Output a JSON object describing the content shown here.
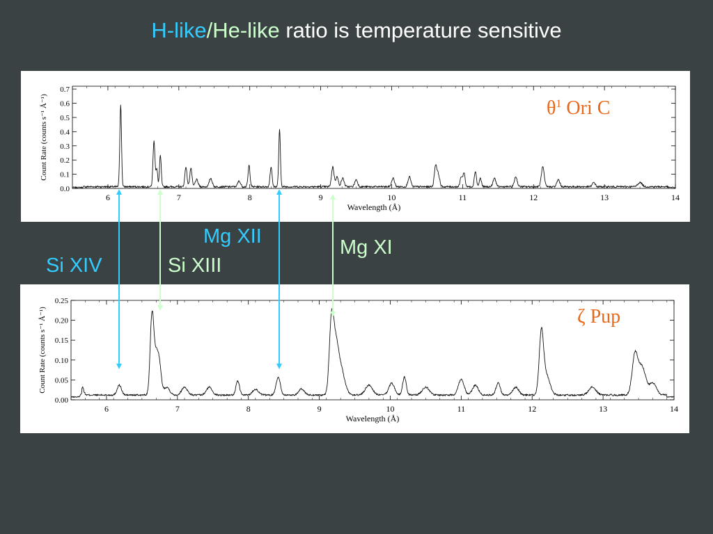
{
  "title": {
    "part1": "H-like",
    "part2": "/",
    "part3": "He-like",
    "part4": " ratio is temperature sensitive"
  },
  "colors": {
    "h_like": "#33ccff",
    "he_like": "#ccffcc",
    "star_label": "#e8681a",
    "background": "#3b4244"
  },
  "ion_labels": {
    "si_xiv": "Si XIV",
    "si_xiii": "Si XIII",
    "mg_xii": "Mg XII",
    "mg_xi": "Mg XI"
  },
  "chart_data": [
    {
      "type": "line",
      "star_label_symbol": "θ",
      "star_label_sup": "1",
      "star_label_text": " Ori C",
      "xlabel": "Wavelength (Å)",
      "ylabel": "Count Rate (counts s⁻¹ Å⁻¹)",
      "xlim": [
        5.5,
        14
      ],
      "ylim": [
        0,
        0.72
      ],
      "xticks": [
        6,
        7,
        8,
        9,
        10,
        11,
        12,
        13,
        14
      ],
      "yticks": [
        0.0,
        0.1,
        0.2,
        0.3,
        0.4,
        0.5,
        0.6,
        0.7
      ],
      "ytick_labels": [
        "0.0",
        "0.1",
        "0.2",
        "0.3",
        "0.4",
        "0.5",
        "0.6",
        "0.7"
      ],
      "baseline": 0.012,
      "peaks": [
        {
          "x": 6.18,
          "y": 0.58,
          "w": 0.012
        },
        {
          "x": 6.65,
          "y": 0.32,
          "w": 0.014
        },
        {
          "x": 6.69,
          "y": 0.12,
          "w": 0.012
        },
        {
          "x": 6.74,
          "y": 0.22,
          "w": 0.012
        },
        {
          "x": 7.1,
          "y": 0.14,
          "w": 0.015
        },
        {
          "x": 7.17,
          "y": 0.13,
          "w": 0.015
        },
        {
          "x": 7.25,
          "y": 0.05,
          "w": 0.02
        },
        {
          "x": 7.45,
          "y": 0.06,
          "w": 0.02
        },
        {
          "x": 7.85,
          "y": 0.04,
          "w": 0.02
        },
        {
          "x": 7.99,
          "y": 0.15,
          "w": 0.014
        },
        {
          "x": 8.3,
          "y": 0.14,
          "w": 0.014
        },
        {
          "x": 8.42,
          "y": 0.4,
          "w": 0.012
        },
        {
          "x": 9.17,
          "y": 0.14,
          "w": 0.018
        },
        {
          "x": 9.23,
          "y": 0.07,
          "w": 0.018
        },
        {
          "x": 9.31,
          "y": 0.06,
          "w": 0.02
        },
        {
          "x": 9.5,
          "y": 0.05,
          "w": 0.02
        },
        {
          "x": 10.02,
          "y": 0.06,
          "w": 0.02
        },
        {
          "x": 10.25,
          "y": 0.07,
          "w": 0.02
        },
        {
          "x": 10.62,
          "y": 0.15,
          "w": 0.018
        },
        {
          "x": 10.66,
          "y": 0.08,
          "w": 0.018
        },
        {
          "x": 10.98,
          "y": 0.07,
          "w": 0.015
        },
        {
          "x": 11.02,
          "y": 0.1,
          "w": 0.015
        },
        {
          "x": 11.18,
          "y": 0.11,
          "w": 0.015
        },
        {
          "x": 11.25,
          "y": 0.06,
          "w": 0.015
        },
        {
          "x": 11.45,
          "y": 0.06,
          "w": 0.02
        },
        {
          "x": 11.75,
          "y": 0.07,
          "w": 0.02
        },
        {
          "x": 12.13,
          "y": 0.14,
          "w": 0.02
        },
        {
          "x": 12.35,
          "y": 0.05,
          "w": 0.02
        },
        {
          "x": 12.85,
          "y": 0.03,
          "w": 0.02
        },
        {
          "x": 13.5,
          "y": 0.03,
          "w": 0.03
        }
      ]
    },
    {
      "type": "line",
      "star_label_symbol": "ζ",
      "star_label_sup": "",
      "star_label_text": " Pup",
      "xlabel": "Wavelength (Å)",
      "ylabel": "Count Rate (counts s⁻¹ Å⁻¹)",
      "xlim": [
        5.5,
        14
      ],
      "ylim": [
        0,
        0.25
      ],
      "xticks": [
        6,
        7,
        8,
        9,
        10,
        11,
        12,
        13,
        14
      ],
      "yticks": [
        0.0,
        0.05,
        0.1,
        0.15,
        0.2,
        0.25
      ],
      "ytick_labels": [
        "0.00",
        "0.05",
        "0.10",
        "0.15",
        "0.20",
        "0.25"
      ],
      "baseline": 0.012,
      "peaks": [
        {
          "x": 5.66,
          "y": 0.02,
          "w": 0.02
        },
        {
          "x": 6.18,
          "y": 0.025,
          "w": 0.03
        },
        {
          "x": 6.64,
          "y": 0.19,
          "w": 0.025
        },
        {
          "x": 6.69,
          "y": 0.08,
          "w": 0.03
        },
        {
          "x": 6.74,
          "y": 0.08,
          "w": 0.03
        },
        {
          "x": 6.85,
          "y": 0.02,
          "w": 0.04
        },
        {
          "x": 7.1,
          "y": 0.02,
          "w": 0.04
        },
        {
          "x": 7.45,
          "y": 0.02,
          "w": 0.04
        },
        {
          "x": 7.85,
          "y": 0.035,
          "w": 0.025
        },
        {
          "x": 8.1,
          "y": 0.015,
          "w": 0.04
        },
        {
          "x": 8.42,
          "y": 0.045,
          "w": 0.03
        },
        {
          "x": 8.75,
          "y": 0.015,
          "w": 0.04
        },
        {
          "x": 9.17,
          "y": 0.17,
          "w": 0.03
        },
        {
          "x": 9.23,
          "y": 0.12,
          "w": 0.04
        },
        {
          "x": 9.31,
          "y": 0.06,
          "w": 0.05
        },
        {
          "x": 9.7,
          "y": 0.025,
          "w": 0.05
        },
        {
          "x": 10.02,
          "y": 0.03,
          "w": 0.04
        },
        {
          "x": 10.2,
          "y": 0.045,
          "w": 0.025
        },
        {
          "x": 10.5,
          "y": 0.02,
          "w": 0.05
        },
        {
          "x": 11.0,
          "y": 0.04,
          "w": 0.04
        },
        {
          "x": 11.2,
          "y": 0.025,
          "w": 0.04
        },
        {
          "x": 11.52,
          "y": 0.03,
          "w": 0.03
        },
        {
          "x": 11.77,
          "y": 0.02,
          "w": 0.04
        },
        {
          "x": 12.13,
          "y": 0.15,
          "w": 0.03
        },
        {
          "x": 12.2,
          "y": 0.05,
          "w": 0.05
        },
        {
          "x": 12.85,
          "y": 0.02,
          "w": 0.05
        },
        {
          "x": 13.45,
          "y": 0.1,
          "w": 0.04
        },
        {
          "x": 13.55,
          "y": 0.07,
          "w": 0.05
        },
        {
          "x": 13.7,
          "y": 0.03,
          "w": 0.05
        }
      ]
    }
  ]
}
